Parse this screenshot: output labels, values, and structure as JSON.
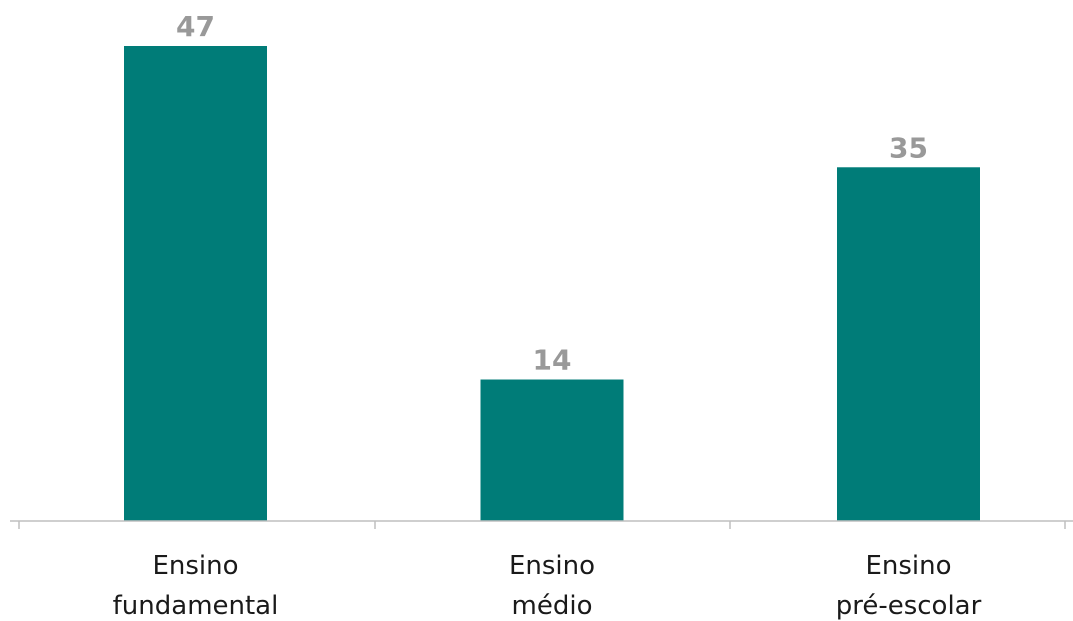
{
  "chart_data": {
    "type": "bar",
    "categories": [
      [
        "Ensino",
        "fundamental"
      ],
      [
        "Ensino",
        "médio"
      ],
      [
        "Ensino",
        "pré-escolar"
      ]
    ],
    "values": [
      47,
      14,
      35
    ],
    "data_labels": [
      "47",
      "14",
      "35"
    ],
    "ylim": [
      0,
      47
    ],
    "grid": false,
    "colors": {
      "bar": "#007C78",
      "data_label": "#999999",
      "axis": "#BFBFBF",
      "category_label": "#1A1A1A"
    }
  }
}
